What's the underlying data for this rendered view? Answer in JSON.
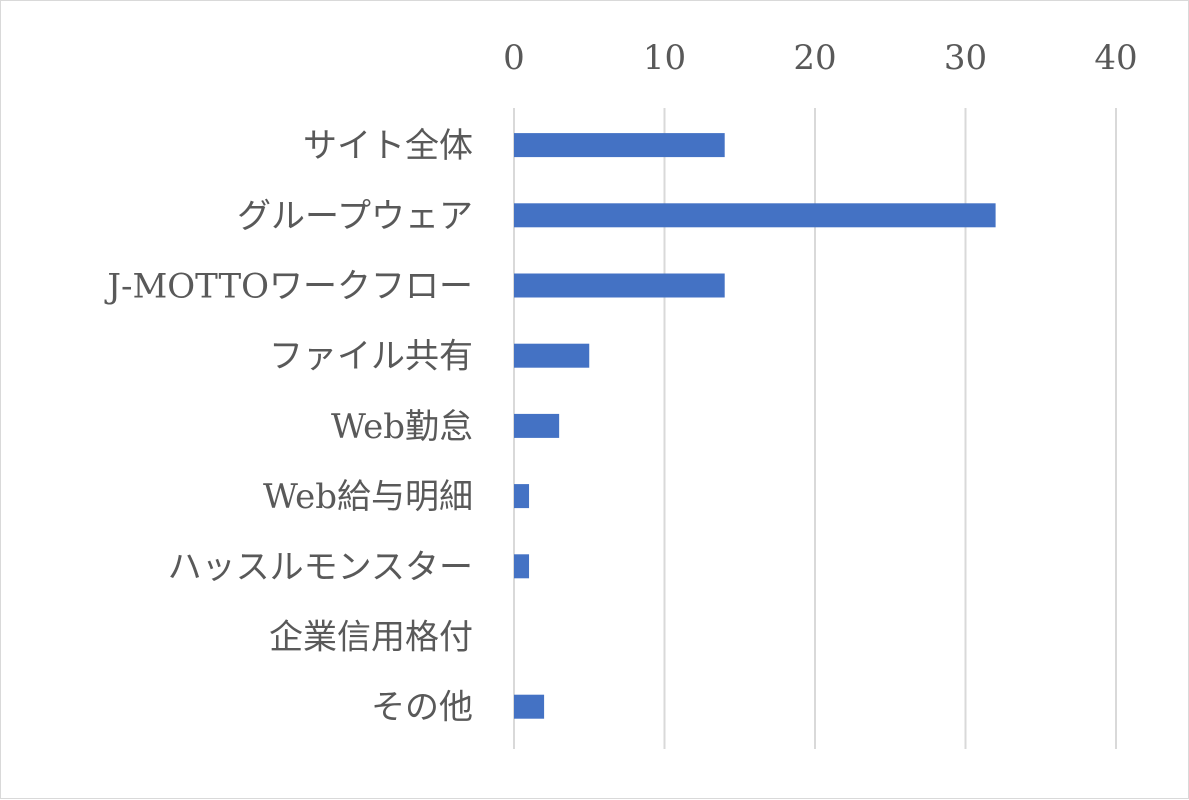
{
  "chart_data": {
    "type": "bar",
    "orientation": "horizontal",
    "categories": [
      "サイト全体",
      "グループウェア",
      "J-MOTTOワークフロー",
      "ファイル共有",
      "Web勤怠",
      "Web給与明細",
      "ハッスルモンスター",
      "企業信用格付",
      "その他"
    ],
    "values": [
      14,
      32,
      14,
      5,
      3,
      1,
      1,
      0,
      2
    ],
    "x_ticks": [
      "0",
      "10",
      "20",
      "30",
      "40"
    ],
    "xlim": [
      0,
      40
    ],
    "x_axis_position": "top",
    "grid": true,
    "legend": "none",
    "title": "",
    "xlabel": "",
    "ylabel": "",
    "colors": {
      "bar": "#4472c4",
      "grid": "#d9d9d9",
      "text": "#595959"
    }
  }
}
